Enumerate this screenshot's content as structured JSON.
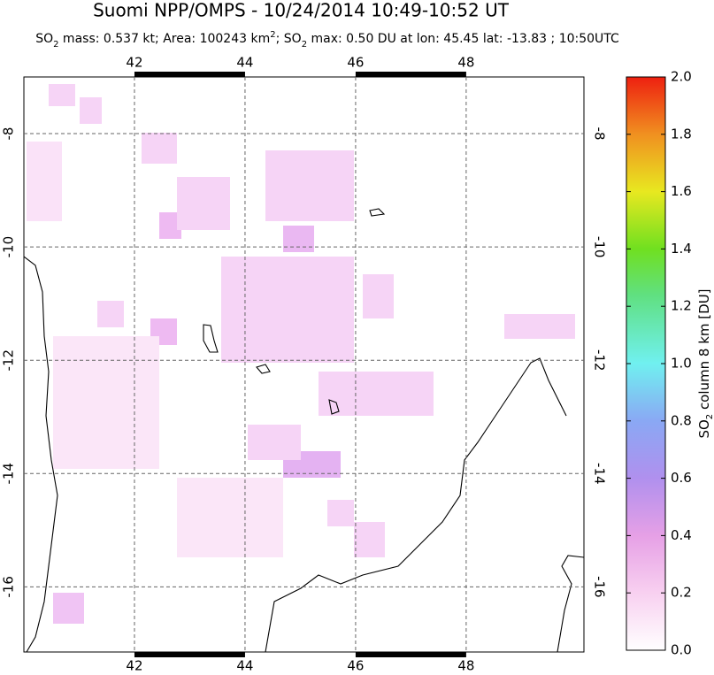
{
  "chart_data": {
    "type": "map",
    "title": "Suomi NPP/OMPS - 10/24/2014 10:49-10:52 UT",
    "subtitle": [
      "SO",
      "2",
      " mass: 0.537 kt; Area: 100243 km",
      "2",
      "; SO",
      "2",
      " max: 0.50 DU at lon: 45.45 lat: -13.83 ; 10:50UTC"
    ],
    "xlim": [
      40,
      50.13
    ],
    "xticks": [
      42,
      44,
      46,
      48
    ],
    "ylim": [
      -17.15,
      -7
    ],
    "yticks": [
      -16,
      -14,
      -12,
      -10,
      -8
    ],
    "grid": true,
    "colorbar": {
      "label": [
        "SO",
        "2",
        " column 8 km [DU]"
      ],
      "lim": [
        0,
        2
      ],
      "ticks": [
        {
          "value": 0,
          "label": "0.0"
        },
        {
          "value": 0.2,
          "label": "0.2"
        },
        {
          "value": 0.4,
          "label": "0.4"
        },
        {
          "value": 0.6,
          "label": "0.6"
        },
        {
          "value": 0.8,
          "label": "0.8"
        },
        {
          "value": 1,
          "label": "1.0"
        },
        {
          "value": 1.2,
          "label": "1.2"
        },
        {
          "value": 1.4,
          "label": "1.4"
        },
        {
          "value": 1.6,
          "label": "1.6"
        },
        {
          "value": 1.8,
          "label": "1.8"
        },
        {
          "value": 2,
          "label": "2.0"
        }
      ]
    }
  }
}
